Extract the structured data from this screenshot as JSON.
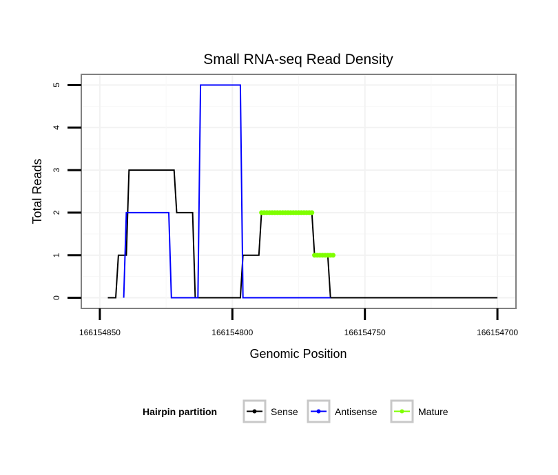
{
  "chart_data": {
    "type": "line",
    "title": "Small RNA-seq Read Density",
    "xlabel": "Genomic Position",
    "ylabel": "Total Reads",
    "x_reversed": true,
    "xlim": [
      166154857,
      166154693
    ],
    "ylim": [
      -0.25,
      5.25
    ],
    "x_ticks": [
      166154850,
      166154800,
      166154750,
      166154700
    ],
    "x_tick_labels": [
      "166154850",
      "166154800",
      "166154750",
      "166154700"
    ],
    "y_ticks": [
      0,
      1,
      2,
      3,
      4,
      5
    ],
    "y_tick_labels": [
      "0",
      "1",
      "2",
      "3",
      "4",
      "5"
    ],
    "legend": {
      "title": "Hairpin partition",
      "position": "bottom",
      "entries": [
        {
          "name": "Sense",
          "color": "#000000"
        },
        {
          "name": "Antisense",
          "color": "#0000ff"
        },
        {
          "name": "Mature",
          "color": "#7fff00"
        }
      ]
    },
    "series": [
      {
        "name": "Sense",
        "color": "#000000",
        "points": [
          [
            166154847,
            0
          ],
          [
            166154844,
            0
          ],
          [
            166154843,
            1
          ],
          [
            166154840,
            1
          ],
          [
            166154839,
            3
          ],
          [
            166154822,
            3
          ],
          [
            166154821,
            2
          ],
          [
            166154815,
            2
          ],
          [
            166154814,
            0
          ],
          [
            166154797,
            0
          ],
          [
            166154796,
            1
          ],
          [
            166154790,
            1
          ],
          [
            166154789,
            2
          ],
          [
            166154770,
            2
          ],
          [
            166154769,
            1
          ],
          [
            166154764,
            1
          ],
          [
            166154763,
            0
          ],
          [
            166154700,
            0
          ]
        ]
      },
      {
        "name": "Antisense",
        "color": "#0000ff",
        "points": [
          [
            166154841,
            0
          ],
          [
            166154840,
            2
          ],
          [
            166154824,
            2
          ],
          [
            166154823,
            0
          ],
          [
            166154813,
            0
          ],
          [
            166154812,
            5
          ],
          [
            166154797,
            5
          ],
          [
            166154796,
            0
          ],
          [
            166154763,
            0
          ]
        ]
      },
      {
        "name": "Mature",
        "color": "#7fff00",
        "segments": [
          [
            [
              166154789,
              2
            ],
            [
              166154770,
              2
            ]
          ],
          [
            [
              166154769,
              1
            ],
            [
              166154762,
              1
            ]
          ]
        ]
      }
    ]
  }
}
